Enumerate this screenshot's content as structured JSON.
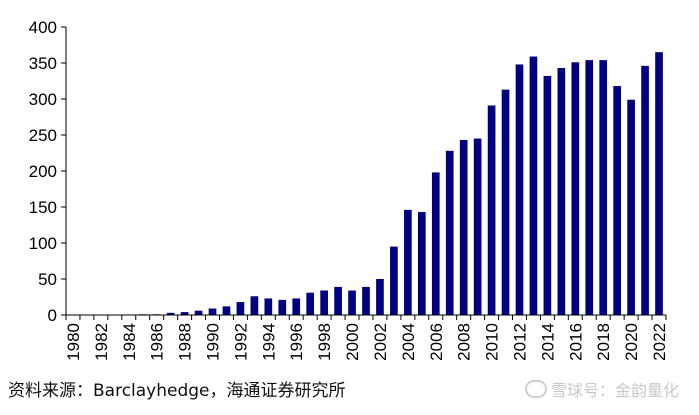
{
  "chart_data": {
    "type": "bar",
    "categories": [
      "1980",
      "1981",
      "1982",
      "1983",
      "1984",
      "1985",
      "1986",
      "1987",
      "1988",
      "1989",
      "1990",
      "1991",
      "1992",
      "1993",
      "1994",
      "1995",
      "1996",
      "1997",
      "1998",
      "1999",
      "2000",
      "2001",
      "2002",
      "2003",
      "2004",
      "2005",
      "2006",
      "2007",
      "2008",
      "2009",
      "2010",
      "2011",
      "2012",
      "2013",
      "2014",
      "2015",
      "2016",
      "2017",
      "2018",
      "2019",
      "2020",
      "2021",
      "2022"
    ],
    "values": [
      0,
      0,
      0,
      0,
      0,
      1,
      1,
      3,
      4,
      6,
      9,
      12,
      18,
      26,
      23,
      21,
      23,
      31,
      34,
      39,
      34,
      39,
      50,
      95,
      146,
      143,
      198,
      228,
      243,
      245,
      291,
      313,
      348,
      359,
      332,
      343,
      351,
      354,
      354,
      318,
      299,
      346,
      365
    ],
    "x_tick_labels": [
      "1980",
      "1982",
      "1984",
      "1986",
      "1988",
      "1990",
      "1992",
      "1994",
      "1996",
      "1998",
      "2000",
      "2002",
      "2004",
      "2006",
      "2008",
      "2010",
      "2012",
      "2014",
      "2016",
      "2018",
      "2020",
      "2022"
    ],
    "y_ticks": [
      0,
      50,
      100,
      150,
      200,
      250,
      300,
      350,
      400
    ],
    "ylim": [
      0,
      400
    ],
    "title": "",
    "xlabel": "",
    "ylabel": "",
    "bar_color": "#000080",
    "grid": false,
    "legend": "none"
  },
  "footer": {
    "source": "资料来源：Barclayhedge，海通证券研究所",
    "watermark": "雪球号：金韵量化"
  }
}
